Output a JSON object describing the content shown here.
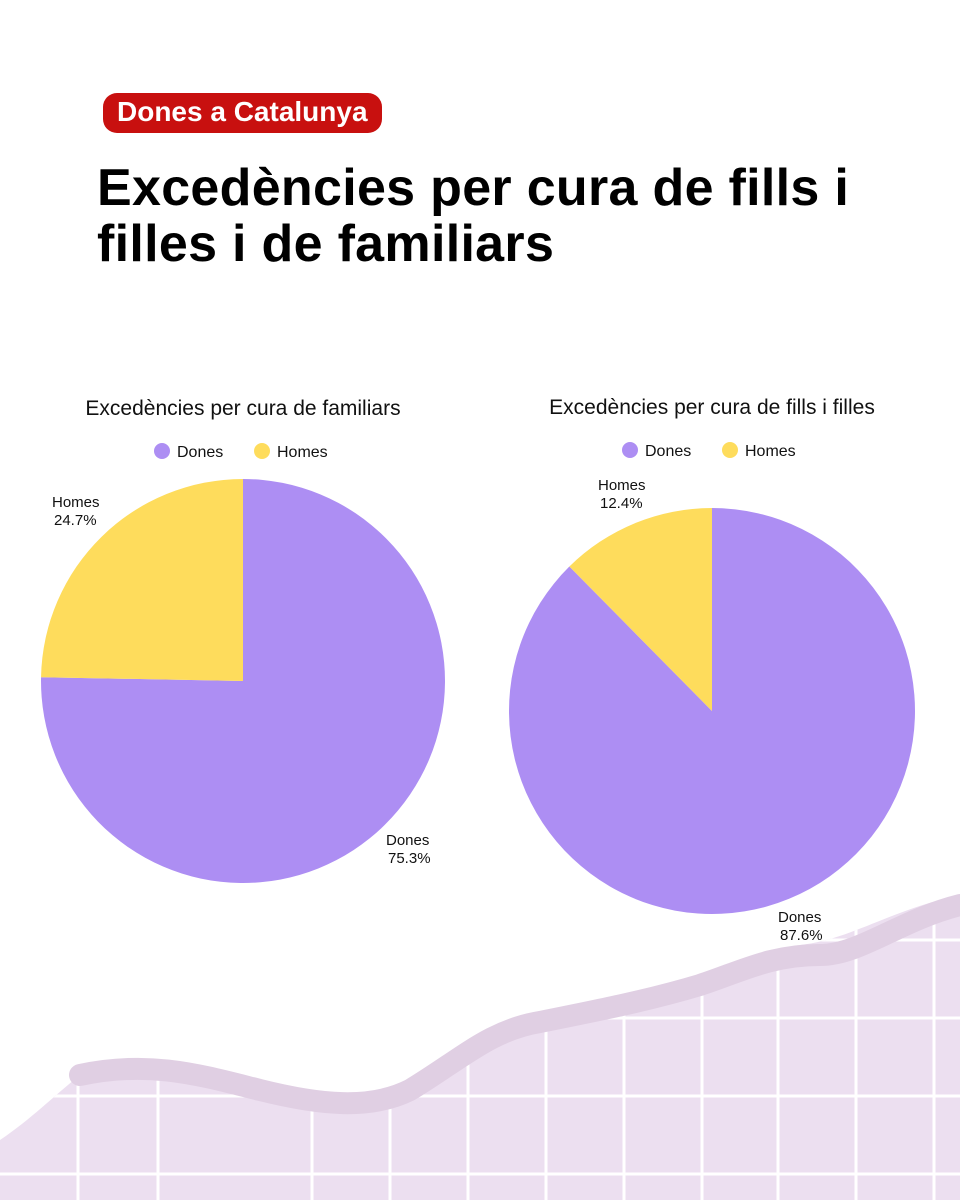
{
  "header": {
    "tag": "Dones a Catalunya",
    "title": "Excedències per cura de fills i filles i de familiars"
  },
  "colors": {
    "tag_bg": "#c8100f",
    "dones": "#ad8ef3",
    "homes": "#fedc5c",
    "deco_fill": "#ecdff0",
    "deco_band": "#e0cfe3"
  },
  "chart_data": [
    {
      "type": "pie",
      "title": "Excedències per cura de familiars",
      "legend": [
        "Dones",
        "Homes"
      ],
      "legend_position": "top",
      "slices": [
        {
          "name": "Dones",
          "value": 75.3,
          "label": "75.3%"
        },
        {
          "name": "Homes",
          "value": 24.7,
          "label": "24.7%"
        }
      ]
    },
    {
      "type": "pie",
      "title": "Excedències per cura de fills i filles",
      "legend": [
        "Dones",
        "Homes"
      ],
      "legend_position": "top",
      "slices": [
        {
          "name": "Dones",
          "value": 87.6,
          "label": "87.6%"
        },
        {
          "name": "Homes",
          "value": 12.4,
          "label": "12.4%"
        }
      ]
    }
  ]
}
